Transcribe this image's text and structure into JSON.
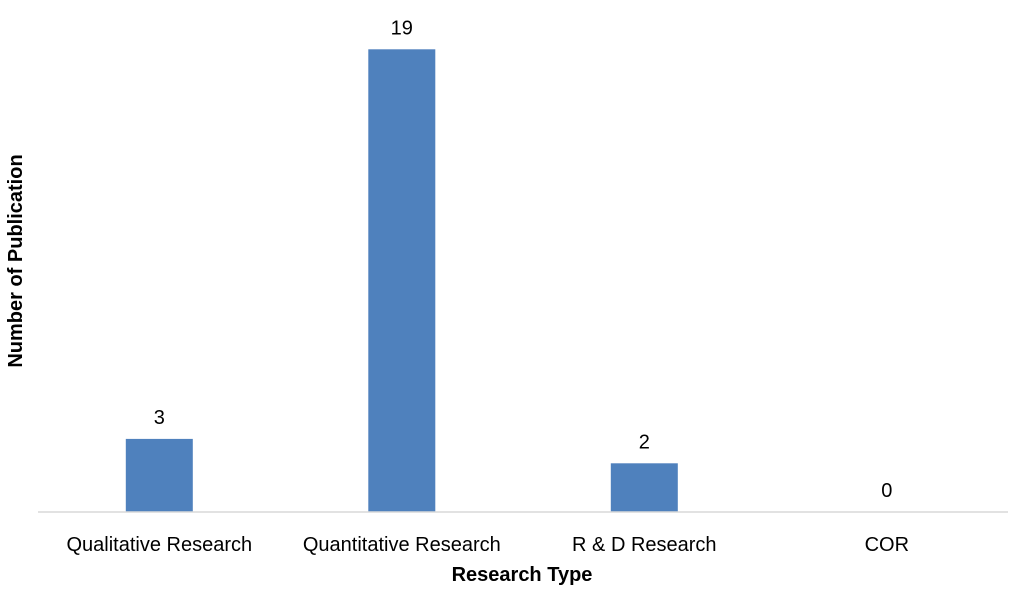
{
  "chart_data": {
    "type": "bar",
    "title": "",
    "xlabel": "Research Type",
    "ylabel": "Number of Publication",
    "categories": [
      "Qualitative Research",
      "Quantitative Research",
      "R & D Research",
      "COR"
    ],
    "values": [
      3,
      19,
      2,
      0
    ],
    "data_labels": [
      "3",
      "19",
      "2",
      "0"
    ],
    "ylim": [
      0,
      20
    ],
    "grid": false,
    "legend": "none",
    "colors": {
      "bar": "#4f81bd",
      "axis": "#d9d9d9",
      "text": "#000000"
    }
  }
}
